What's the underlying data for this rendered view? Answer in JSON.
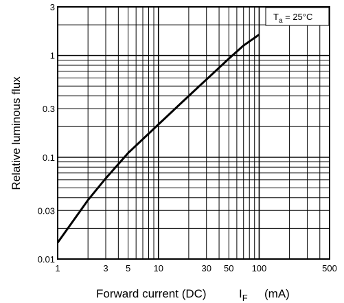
{
  "chart_data": {
    "type": "line",
    "title": "",
    "xlabel": "Forward current (DC)",
    "xlabel_symbol": "I",
    "xlabel_subscript": "F",
    "xlabel_unit": "(mA)",
    "ylabel": "Relative luminous flux",
    "x_scale": "log",
    "y_scale": "log",
    "xlim": [
      1,
      500
    ],
    "ylim": [
      0.01,
      3
    ],
    "grid": true,
    "x_tick_labels": [
      {
        "value": 1,
        "label": "1"
      },
      {
        "value": 3,
        "label": "3"
      },
      {
        "value": 5,
        "label": "5"
      },
      {
        "value": 10,
        "label": "10"
      },
      {
        "value": 30,
        "label": "30"
      },
      {
        "value": 50,
        "label": "50"
      },
      {
        "value": 100,
        "label": "100"
      },
      {
        "value": 500,
        "label": "500"
      }
    ],
    "y_tick_labels": [
      {
        "value": 0.01,
        "label": "0.01"
      },
      {
        "value": 0.03,
        "label": "0.03"
      },
      {
        "value": 0.1,
        "label": "0.1"
      },
      {
        "value": 0.3,
        "label": "0.3"
      },
      {
        "value": 1,
        "label": "1"
      },
      {
        "value": 3,
        "label": "3"
      }
    ],
    "annotation": {
      "symbol": "T",
      "subscript": "a",
      "text": " = 25°C"
    },
    "series": [
      {
        "x": [
          1,
          2,
          3,
          5,
          10,
          20,
          30,
          50,
          70,
          100
        ],
        "y": [
          0.0145,
          0.038,
          0.062,
          0.11,
          0.21,
          0.4,
          0.58,
          0.93,
          1.25,
          1.6
        ]
      }
    ]
  }
}
